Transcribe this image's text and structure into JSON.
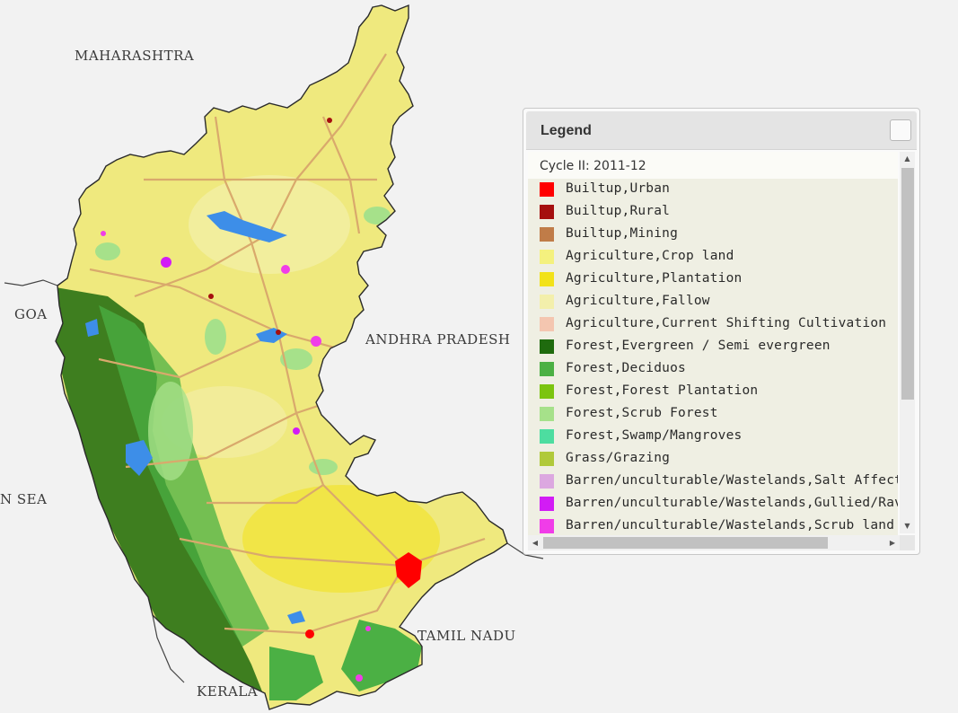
{
  "map_labels": {
    "maharashtra": "MAHARASHTRA",
    "goa": "GOA",
    "andhra_pradesh": "ANDHRA PRADESH",
    "sea": "N SEA",
    "tamil_nadu": "TAMIL NADU",
    "kerala": "KERALA"
  },
  "legend": {
    "title": "Legend",
    "cycle": "Cycle II: 2011-12",
    "items": [
      {
        "label": "Builtup,Urban",
        "color": "#ff0000"
      },
      {
        "label": "Builtup,Rural",
        "color": "#a50f0f"
      },
      {
        "label": "Builtup,Mining",
        "color": "#c07c48"
      },
      {
        "label": "Agriculture,Crop land",
        "color": "#f4f17e"
      },
      {
        "label": "Agriculture,Plantation",
        "color": "#f2e21a"
      },
      {
        "label": "Agriculture,Fallow",
        "color": "#f3efab"
      },
      {
        "label": "Agriculture,Current Shifting Cultivation",
        "color": "#f4c6b0"
      },
      {
        "label": "Forest,Evergreen / Semi evergreen",
        "color": "#1f6b0e"
      },
      {
        "label": "Forest,Deciduos",
        "color": "#4bb044"
      },
      {
        "label": "Forest,Forest Plantation",
        "color": "#7bc40f"
      },
      {
        "label": "Forest,Scrub Forest",
        "color": "#a6e18a"
      },
      {
        "label": "Forest,Swamp/Mangroves",
        "color": "#4ddda0"
      },
      {
        "label": "Grass/Grazing",
        "color": "#b0c93a"
      },
      {
        "label": "Barren/unculturable/Wastelands,Salt Affected L",
        "color": "#dca8e0"
      },
      {
        "label": "Barren/unculturable/Wastelands,Gullied/Ravinou",
        "color": "#d21cf5"
      },
      {
        "label": "Barren/unculturable/Wastelands,Scrub land",
        "color": "#f03de8"
      }
    ]
  },
  "colors": {
    "map_base": "#efe97e",
    "outline": "#2a2a2a",
    "roads": "#d9a96c",
    "water": "#3d8ee8"
  }
}
